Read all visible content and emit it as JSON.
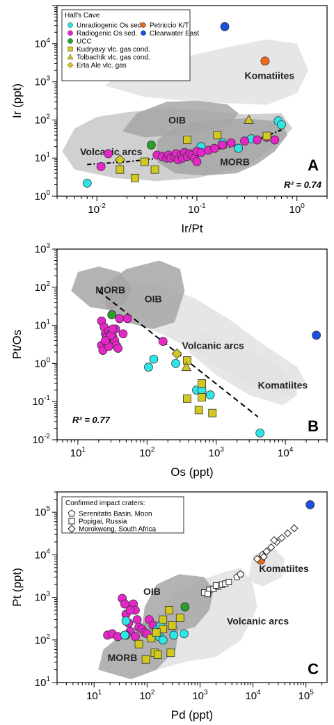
{
  "colors": {
    "unradiogenic": "#2ee6e6",
    "radiogenic": "#e626c8",
    "ucc": "#2aa02a",
    "petriccio": "#f06a1e",
    "clearwater": "#1a4fe0",
    "kudryavy": "#d2c81e",
    "region_light": "#e2e2e2",
    "region_mid": "#c8c8c8",
    "region_dark": "#a6a6a6"
  },
  "chart_data": [
    {
      "panel": "A",
      "type": "scatter",
      "xlabel": "Ir/Pt",
      "ylabel": "Ir (ppt)",
      "xscale": "log",
      "yscale": "log",
      "xlim": [
        0.004,
        2
      ],
      "ylim": [
        1,
        100000
      ],
      "x_ticks": [
        "10-2",
        "10-1",
        "100"
      ],
      "y_ticks": [
        "100",
        "101",
        "102",
        "103",
        "104"
      ],
      "legend_title": "Hall's Cave",
      "legend": [
        {
          "label": "Unradiogenic Os sed.",
          "marker": "circle",
          "color_key": "unradiogenic"
        },
        {
          "label": "Petriccio K/T",
          "marker": "circle",
          "color_key": "petriccio"
        },
        {
          "label": "Radiogenic Os sed.",
          "marker": "circle",
          "color_key": "radiogenic"
        },
        {
          "label": "Clearwater East",
          "marker": "circle",
          "color_key": "clearwater"
        },
        {
          "label": "UCC",
          "marker": "circle",
          "color_key": "ucc"
        },
        {
          "label": "Kudryavy vlc. gas cond.",
          "marker": "square",
          "color_key": "kudryavy"
        },
        {
          "label": "Tolbachik vlc. gas cond.",
          "marker": "triangle",
          "color_key": "kudryavy"
        },
        {
          "label": "Erta Ale vlc. gas",
          "marker": "diamond",
          "color_key": "kudryavy"
        }
      ],
      "region_labels": [
        "Komatiites",
        "OIB",
        "Volcanic arcs",
        "MORB"
      ],
      "annotation": "R² = 0.74",
      "series": [
        {
          "name": "Unradiogenic Os sed.",
          "marker": "circle",
          "color_key": "unradiogenic",
          "points": [
            [
              0.008,
              2.2
            ],
            [
              0.11,
              20
            ],
            [
              0.18,
              25
            ],
            [
              0.26,
              18
            ],
            [
              0.35,
              32
            ],
            [
              0.65,
              95
            ],
            [
              0.7,
              75
            ]
          ]
        },
        {
          "name": "Radiogenic Os sed.",
          "marker": "circle",
          "color_key": "radiogenic",
          "points": [
            [
              0.011,
              6
            ],
            [
              0.013,
              13
            ],
            [
              0.04,
              12
            ],
            [
              0.045,
              11
            ],
            [
              0.05,
              10
            ],
            [
              0.052,
              12
            ],
            [
              0.055,
              10
            ],
            [
              0.06,
              11
            ],
            [
              0.062,
              13
            ],
            [
              0.065,
              9
            ],
            [
              0.07,
              12
            ],
            [
              0.072,
              10
            ],
            [
              0.075,
              14
            ],
            [
              0.08,
              11
            ],
            [
              0.085,
              13
            ],
            [
              0.09,
              12
            ],
            [
              0.095,
              10
            ],
            [
              0.1,
              15
            ],
            [
              0.11,
              14
            ],
            [
              0.13,
              16
            ],
            [
              0.15,
              18
            ],
            [
              0.18,
              22
            ],
            [
              0.22,
              25
            ],
            [
              0.3,
              28
            ],
            [
              0.4,
              30
            ],
            [
              0.5,
              35
            ],
            [
              0.6,
              30
            ],
            [
              0.1,
              8
            ]
          ]
        },
        {
          "name": "UCC",
          "marker": "circle",
          "color_key": "ucc",
          "points": [
            [
              0.035,
              22
            ]
          ]
        },
        {
          "name": "Petriccio K/T",
          "marker": "circle",
          "color_key": "petriccio",
          "points": [
            [
              0.48,
              3500
            ]
          ]
        },
        {
          "name": "Clearwater East",
          "marker": "circle",
          "color_key": "clearwater",
          "points": [
            [
              0.19,
              28000
            ]
          ]
        },
        {
          "name": "Kudryavy vlc. gas cond.",
          "marker": "square",
          "color_key": "kudryavy",
          "points": [
            [
              0.017,
              5
            ],
            [
              0.024,
              3
            ],
            [
              0.03,
              8
            ],
            [
              0.038,
              5
            ],
            [
              0.08,
              30
            ],
            [
              0.16,
              40
            ],
            [
              0.5,
              38
            ]
          ]
        },
        {
          "name": "Tolbachik vlc. gas cond.",
          "marker": "triangle",
          "color_key": "kudryavy",
          "points": [
            [
              0.33,
              100
            ]
          ]
        },
        {
          "name": "Erta Ale vlc. gas",
          "marker": "diamond",
          "color_key": "kudryavy",
          "points": [
            [
              0.017,
              9
            ]
          ]
        }
      ],
      "trendline": [
        [
          0.008,
          6.8
        ],
        [
          0.02,
          8
        ],
        [
          0.05,
          10.5
        ],
        [
          0.1,
          14
        ],
        [
          0.2,
          19
        ],
        [
          0.4,
          30
        ],
        [
          0.7,
          55
        ]
      ]
    },
    {
      "panel": "B",
      "type": "scatter",
      "xlabel": "Os (ppt)",
      "ylabel": "Pt/Os",
      "xscale": "log",
      "yscale": "log",
      "xlim": [
        5,
        40000
      ],
      "ylim": [
        0.01,
        1000
      ],
      "x_ticks": [
        "101",
        "102",
        "103",
        "104"
      ],
      "y_ticks": [
        "10-2",
        "10-1",
        "100",
        "101",
        "102",
        "103"
      ],
      "region_labels": [
        "MORB",
        "OIB",
        "Volcanic arcs",
        "Komatiites"
      ],
      "annotation": "R² = 0.77",
      "series": [
        {
          "name": "Radiogenic Os sed.",
          "marker": "circle",
          "color_key": "radiogenic",
          "points": [
            [
              22,
              13
            ],
            [
              24,
              9
            ],
            [
              25,
              6
            ],
            [
              26,
              5
            ],
            [
              28,
              7
            ],
            [
              30,
              6
            ],
            [
              32,
              5
            ],
            [
              34,
              4
            ],
            [
              36,
              3
            ],
            [
              38,
              2.5
            ],
            [
              22,
              3
            ],
            [
              23,
              2.2
            ],
            [
              26,
              3.5
            ],
            [
              28,
              2.8
            ],
            [
              30,
              5.5
            ],
            [
              40,
              15
            ],
            [
              52,
              15
            ],
            [
              45,
              6
            ],
            [
              35,
              8
            ],
            [
              25,
              4
            ],
            [
              170,
              3.8
            ],
            [
              32,
              8
            ]
          ]
        },
        {
          "name": "Unradiogenic Os sed.",
          "marker": "circle",
          "color_key": "unradiogenic",
          "points": [
            [
              105,
              0.8
            ],
            [
              125,
              1.3
            ],
            [
              260,
              1.0
            ],
            [
              520,
              0.2
            ],
            [
              620,
              0.2
            ],
            [
              820,
              0.15
            ],
            [
              4300,
              0.015
            ]
          ]
        },
        {
          "name": "UCC",
          "marker": "circle",
          "color_key": "ucc",
          "points": [
            [
              31,
              19
            ]
          ]
        },
        {
          "name": "Clearwater East",
          "marker": "circle",
          "color_key": "clearwater",
          "points": [
            [
              28000,
              5.5
            ]
          ]
        },
        {
          "name": "Kudryavy vlc. gas cond.",
          "marker": "square",
          "color_key": "kudryavy",
          "points": [
            [
              380,
              1.2
            ],
            [
              380,
              0.12
            ],
            [
              560,
              0.06
            ],
            [
              620,
              0.3
            ],
            [
              880,
              0.05
            ],
            [
              620,
              0.13
            ]
          ]
        },
        {
          "name": "Tolbachik vlc. gas cond.",
          "marker": "triangle",
          "color_key": "kudryavy",
          "points": [
            [
              370,
              0.8
            ]
          ]
        },
        {
          "name": "Erta Ale vlc. gas",
          "marker": "diamond",
          "color_key": "kudryavy",
          "points": [
            [
              270,
              1.8
            ]
          ]
        }
      ],
      "trendline": [
        [
          20,
          80
        ],
        [
          4000,
          0.04
        ]
      ]
    },
    {
      "panel": "C",
      "type": "scatter",
      "xlabel": "Pd (ppt)",
      "ylabel": "Pt (ppt)",
      "xscale": "log",
      "yscale": "log",
      "xlim": [
        2,
        250000
      ],
      "ylim": [
        10,
        300000
      ],
      "x_ticks": [
        "101",
        "102",
        "103",
        "104",
        "105"
      ],
      "y_ticks": [
        "101",
        "102",
        "103",
        "104",
        "105"
      ],
      "legend_title": "Confirmed impact craters:",
      "legend": [
        {
          "label": "Serenitatis Basin, Moon",
          "marker": "pentagon"
        },
        {
          "label": "Popigai, Russia",
          "marker": "square-open"
        },
        {
          "label": "Morokweng, South Africa",
          "marker": "diamond-open"
        }
      ],
      "region_labels": [
        "OIB",
        "Komatiites",
        "Volcanic arcs",
        "MORB"
      ],
      "series": [
        {
          "name": "Radiogenic Os sed.",
          "marker": "circle",
          "color_key": "radiogenic",
          "points": [
            [
              18,
              130
            ],
            [
              22,
              140
            ],
            [
              28,
              120
            ],
            [
              34,
              950
            ],
            [
              38,
              700
            ],
            [
              40,
              400
            ],
            [
              45,
              250
            ],
            [
              48,
              160
            ],
            [
              55,
              700
            ],
            [
              60,
              500
            ],
            [
              65,
              300
            ],
            [
              70,
              200
            ],
            [
              80,
              180
            ],
            [
              90,
              150
            ],
            [
              100,
              140
            ],
            [
              110,
              300
            ],
            [
              130,
              220
            ],
            [
              40,
              130
            ],
            [
              60,
              120
            ],
            [
              48,
              500
            ]
          ]
        },
        {
          "name": "Unradiogenic Os sed.",
          "marker": "circle",
          "color_key": "unradiogenic",
          "points": [
            [
              40,
              280
            ],
            [
              38,
              130
            ],
            [
              150,
              170
            ],
            [
              170,
              120
            ],
            [
              200,
              100
            ],
            [
              320,
              130
            ],
            [
              500,
              140
            ],
            [
              180,
              220
            ]
          ]
        },
        {
          "name": "UCC",
          "marker": "circle",
          "color_key": "ucc",
          "points": [
            [
              520,
              600
            ]
          ]
        },
        {
          "name": "Petriccio K/T",
          "marker": "circle",
          "color_key": "petriccio",
          "points": [
            [
              14000,
              7500
            ]
          ]
        },
        {
          "name": "Clearwater East",
          "marker": "circle",
          "color_key": "clearwater",
          "points": [
            [
              120000,
              150000
            ]
          ]
        },
        {
          "name": "Kudryavy vlc. gas cond.",
          "marker": "square",
          "color_key": "kudryavy",
          "points": [
            [
              70,
              80
            ],
            [
              95,
              35
            ],
            [
              120,
              110
            ],
            [
              140,
              50
            ],
            [
              160,
              45
            ],
            [
              200,
              180
            ],
            [
              260,
              500
            ],
            [
              280,
              50
            ],
            [
              300,
              220
            ],
            [
              420,
              330
            ],
            [
              200,
              300
            ],
            [
              150,
              150
            ]
          ]
        },
        {
          "name": "Popigai, Russia",
          "marker": "square-open",
          "points": [
            [
              1200,
              1300
            ],
            [
              1500,
              1500
            ],
            [
              1800,
              1600
            ],
            [
              2200,
              1800
            ],
            [
              2600,
              2000
            ],
            [
              3000,
              2100
            ],
            [
              3500,
              2300
            ],
            [
              1400,
              1200
            ],
            [
              2000,
              1900
            ]
          ]
        },
        {
          "name": "Serenitatis Basin, Moon",
          "marker": "pentagon",
          "points": [
            [
              5000,
              3000
            ],
            [
              5800,
              3500
            ]
          ]
        },
        {
          "name": "Morokweng, South Africa",
          "marker": "diamond-open",
          "points": [
            [
              12000,
              8000
            ],
            [
              15000,
              10000
            ],
            [
              18000,
              12000
            ],
            [
              22000,
              15000
            ],
            [
              28000,
              20000
            ],
            [
              35000,
              25000
            ],
            [
              45000,
              32000
            ],
            [
              60000,
              42000
            ],
            [
              25000,
              22000
            ],
            [
              16000,
              9000
            ]
          ]
        }
      ]
    }
  ]
}
